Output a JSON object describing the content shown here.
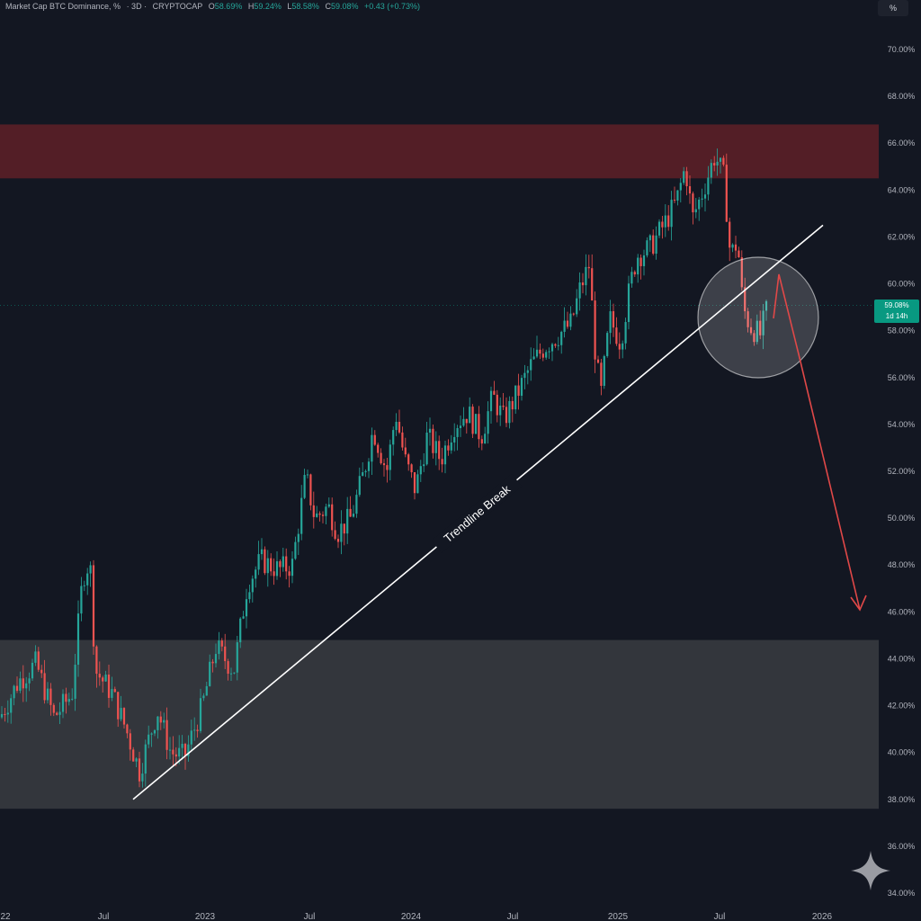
{
  "header": {
    "symbol": "Market Cap BTC Dominance, %",
    "interval": "· 3D ·",
    "source": "CRYPTOCAP",
    "open_label": "O",
    "open": "58.69%",
    "high_label": "H",
    "high": "59.24%",
    "low_label": "L",
    "low": "58.58%",
    "close_label": "C",
    "close": "59.08%",
    "change": "+0.43 (+0.73%)"
  },
  "percent_button": {
    "label": "%"
  },
  "price_badge": {
    "value": "59.08%",
    "countdown": "1d 14h"
  },
  "colors": {
    "background": "#131722",
    "up": "#26a69a",
    "down": "#ef5350",
    "resistance_zone": "#5b1f27",
    "support_zone": "#3c3e44",
    "trendline": "#ffffff",
    "arrow": "#e04848"
  },
  "chart_data": {
    "type": "candlestick",
    "y_axis": {
      "ticks": [
        "70.00%",
        "68.00%",
        "66.00%",
        "64.00%",
        "62.00%",
        "60.00%",
        "58.00%",
        "56.00%",
        "54.00%",
        "52.00%",
        "50.00%",
        "48.00%",
        "46.00%",
        "44.00%",
        "42.00%",
        "40.00%",
        "38.00%",
        "36.00%",
        "34.00%"
      ],
      "ylim": [
        34,
        70
      ]
    },
    "x_axis": {
      "ticks": [
        "22",
        "Jul",
        "2023",
        "Jul",
        "2024",
        "Jul",
        "2025",
        "Jul",
        "2026"
      ]
    },
    "price_path": [
      [
        0,
        41.5
      ],
      [
        20,
        43
      ],
      [
        40,
        43.8
      ],
      [
        60,
        41.5
      ],
      [
        80,
        42.5
      ],
      [
        92,
        47.5
      ],
      [
        100,
        48.2
      ],
      [
        106,
        43.5
      ],
      [
        125,
        42.5
      ],
      [
        140,
        41
      ],
      [
        155,
        39.2
      ],
      [
        175,
        41.8
      ],
      [
        190,
        40
      ],
      [
        205,
        39.8
      ],
      [
        225,
        42
      ],
      [
        240,
        44.5
      ],
      [
        260,
        43.5
      ],
      [
        275,
        47.2
      ],
      [
        290,
        48.2
      ],
      [
        310,
        47.8
      ],
      [
        325,
        48
      ],
      [
        340,
        51.8
      ],
      [
        350,
        50
      ],
      [
        365,
        50.5
      ],
      [
        375,
        49.4
      ],
      [
        390,
        50
      ],
      [
        405,
        52
      ],
      [
        415,
        53.8
      ],
      [
        430,
        52
      ],
      [
        440,
        54.5
      ],
      [
        450,
        52.5
      ],
      [
        462,
        51.2
      ],
      [
        475,
        53.5
      ],
      [
        490,
        52.5
      ],
      [
        505,
        54
      ],
      [
        520,
        54.5
      ],
      [
        535,
        53.5
      ],
      [
        548,
        55.2
      ],
      [
        560,
        54.2
      ],
      [
        575,
        55.3
      ],
      [
        590,
        56.5
      ],
      [
        605,
        57.3
      ],
      [
        620,
        57.8
      ],
      [
        635,
        58.3
      ],
      [
        645,
        59.8
      ],
      [
        655,
        60.8
      ],
      [
        662,
        57
      ],
      [
        668,
        55.2
      ],
      [
        678,
        58.5
      ],
      [
        690,
        57.5
      ],
      [
        700,
        59.8
      ],
      [
        708,
        61.2
      ],
      [
        722,
        61.5
      ],
      [
        738,
        62.5
      ],
      [
        752,
        63.5
      ],
      [
        762,
        65
      ],
      [
        770,
        62.8
      ],
      [
        780,
        63.8
      ],
      [
        795,
        65.5
      ],
      [
        805,
        64.5
      ],
      [
        812,
        61.2
      ],
      [
        820,
        61.8
      ],
      [
        826,
        59
      ],
      [
        834,
        58.2
      ],
      [
        845,
        57.8
      ],
      [
        852,
        58.8
      ]
    ],
    "zones": [
      {
        "kind": "resistance",
        "y_top": 66.8,
        "y_bottom": 64.5
      },
      {
        "kind": "support",
        "y_top": 44.8,
        "y_bottom": 37.6
      }
    ],
    "trendline": {
      "label": "Trendline Break",
      "from": 38.0,
      "to": 62.5
    },
    "current_price": 59.08
  }
}
